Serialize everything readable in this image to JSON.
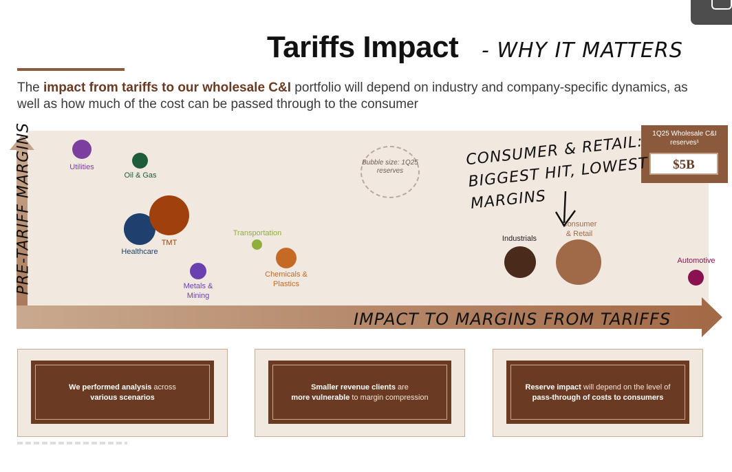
{
  "title": "Tariffs Impact",
  "annotation_title": "- WHY IT MATTERS",
  "description": {
    "pre": "The ",
    "bold": "impact from tariffs to our wholesale C&I",
    "post": " portfolio will depend on industry and company-specific dynamics, as well as how much of the cost can be passed through to the consumer"
  },
  "chart": {
    "y_axis_annotation": "PRE-TARIFF MARGINS",
    "x_axis_annotation": "IMPACT TO MARGINS FROM TARIFFS",
    "legend_bubble": "Bubble size: 1Q25 reserves",
    "reserves": {
      "header": "1Q25 Wholesale C&I reserves¹",
      "value": "$5B"
    },
    "hand_note": "CONSUMER & RETAIL: BIGGEST HIT, LOWEST MARGINS",
    "bubbles": [
      {
        "label": "Utilities",
        "color": "#7b3fa0"
      },
      {
        "label": "Oil & Gas",
        "color": "#1f5c3a"
      },
      {
        "label": "Healthcare",
        "color": "#1f3f6e"
      },
      {
        "label": "TMT",
        "color": "#a0410d"
      },
      {
        "label": "Metals & Mining",
        "color": "#6a3fb0"
      },
      {
        "label": "Transportation",
        "color": "#8fae3c"
      },
      {
        "label": "Chemicals & Plastics",
        "color": "#c46a25"
      },
      {
        "label": "Industrials",
        "color": "#4a2a1a"
      },
      {
        "label": "Consumer & Retail",
        "color": "#a06a48"
      },
      {
        "label": "Automotive",
        "color": "#8a1250"
      }
    ]
  },
  "cards": [
    {
      "bold": "We performed analysis",
      "text": " across",
      "line2": "various scenarios"
    },
    {
      "bold": "Smaller revenue clients",
      "text": " are",
      "line2_bold": "more vulnerable",
      "line2": " to margin compression"
    },
    {
      "bold": "Reserve impact",
      "text": " will depend on the level of",
      "line2": "pass-through of costs to consumers"
    }
  ]
}
